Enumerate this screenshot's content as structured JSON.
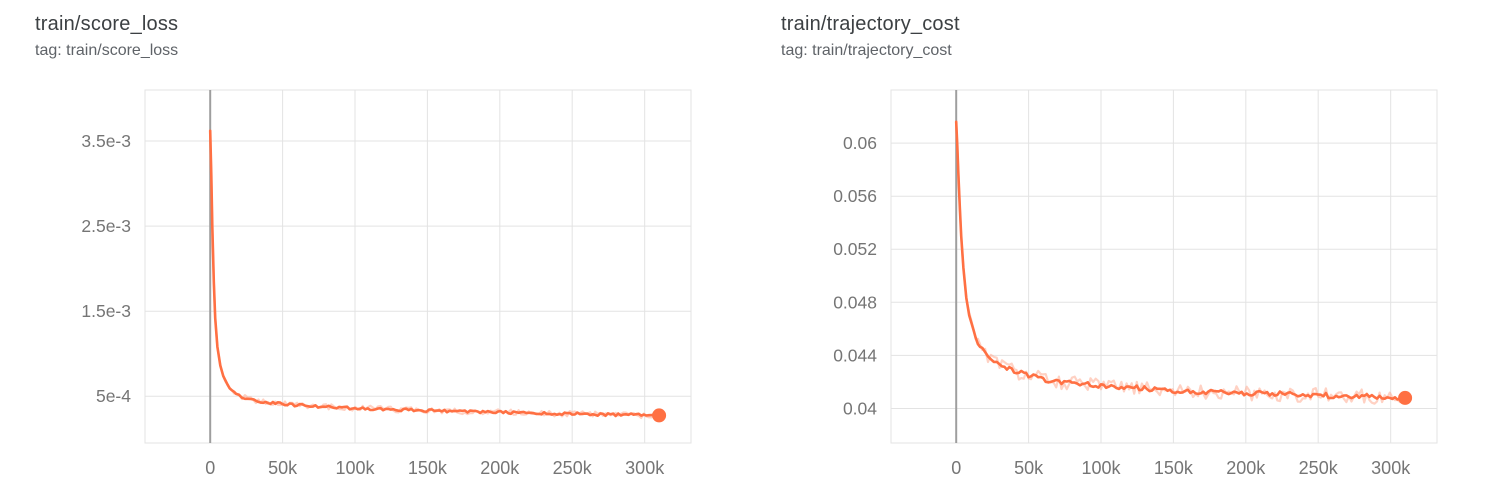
{
  "colors": {
    "accent": "#ff7043",
    "accent_raw": "#ffab91",
    "grid": "#e3e3e3",
    "zero_line": "#9e9e9e",
    "title_text": "#3c4043",
    "tag_text": "#5f6368",
    "tick_text": "#757575",
    "background": "#ffffff"
  },
  "chart_data": [
    {
      "type": "line",
      "title": "train/score_loss",
      "tag": "tag: train/score_loss",
      "xlabel": "",
      "ylabel": "",
      "xlim": [
        -45000,
        332000
      ],
      "ylim": [
        -5e-05,
        0.0041
      ],
      "grid": true,
      "legend": false,
      "xticks": [
        {
          "v": 0,
          "label": "0"
        },
        {
          "v": 50000,
          "label": "50k"
        },
        {
          "v": 100000,
          "label": "100k"
        },
        {
          "v": 150000,
          "label": "150k"
        },
        {
          "v": 200000,
          "label": "200k"
        },
        {
          "v": 250000,
          "label": "250k"
        },
        {
          "v": 300000,
          "label": "300k"
        }
      ],
      "yticks": [
        {
          "v": 0.0005,
          "label": "5e-4"
        },
        {
          "v": 0.0015,
          "label": "1.5e-3"
        },
        {
          "v": 0.0025,
          "label": "2.5e-3"
        },
        {
          "v": 0.0035,
          "label": "3.5e-3"
        }
      ],
      "noise": {
        "raw": 3.5e-05,
        "smooth": 1.6e-05,
        "onset": 4000,
        "full": 18000
      },
      "series": [
        {
          "name": "train",
          "color": "#ff7043",
          "final_step": 310000,
          "final_value": 0.000275,
          "points": [
            [
              0,
              0.00362
            ],
            [
              800,
              0.0031
            ],
            [
              1500,
              0.0025
            ],
            [
              2500,
              0.00185
            ],
            [
              3500,
              0.00142
            ],
            [
              5000,
              0.00108
            ],
            [
              7000,
              0.00086
            ],
            [
              9000,
              0.00074
            ],
            [
              12000,
              0.00063
            ],
            [
              15000,
              0.00057
            ],
            [
              18000,
              0.00053
            ],
            [
              22000,
              0.000495
            ],
            [
              26000,
              0.00047
            ],
            [
              30000,
              0.000452
            ],
            [
              40000,
              0.000425
            ],
            [
              50000,
              0.000408
            ],
            [
              60000,
              0.000395
            ],
            [
              80000,
              0.000375
            ],
            [
              100000,
              0.00036
            ],
            [
              130000,
              0.000342
            ],
            [
              160000,
              0.000328
            ],
            [
              190000,
              0.000315
            ],
            [
              220000,
              0.000303
            ],
            [
              250000,
              0.000292
            ],
            [
              280000,
              0.000283
            ],
            [
              310000,
              0.000275
            ]
          ]
        }
      ]
    },
    {
      "type": "line",
      "title": "train/trajectory_cost",
      "tag": "tag: train/trajectory_cost",
      "xlabel": "",
      "ylabel": "",
      "xlim": [
        -45000,
        332000
      ],
      "ylim": [
        0.0374,
        0.064
      ],
      "grid": true,
      "legend": false,
      "xticks": [
        {
          "v": 0,
          "label": "0"
        },
        {
          "v": 50000,
          "label": "50k"
        },
        {
          "v": 100000,
          "label": "100k"
        },
        {
          "v": 150000,
          "label": "150k"
        },
        {
          "v": 200000,
          "label": "200k"
        },
        {
          "v": 250000,
          "label": "250k"
        },
        {
          "v": 300000,
          "label": "300k"
        }
      ],
      "yticks": [
        {
          "v": 0.04,
          "label": "0.04"
        },
        {
          "v": 0.044,
          "label": "0.044"
        },
        {
          "v": 0.048,
          "label": "0.048"
        },
        {
          "v": 0.052,
          "label": "0.052"
        },
        {
          "v": 0.056,
          "label": "0.056"
        },
        {
          "v": 0.06,
          "label": "0.06"
        }
      ],
      "noise": {
        "raw": 0.00055,
        "smooth": 0.00019,
        "onset": 3000,
        "full": 15000
      },
      "series": [
        {
          "name": "train",
          "color": "#ff7043",
          "final_step": 310000,
          "final_value": 0.0408,
          "points": [
            [
              0,
              0.0616
            ],
            [
              800,
              0.0598
            ],
            [
              1500,
              0.0578
            ],
            [
              2500,
              0.0552
            ],
            [
              3500,
              0.053
            ],
            [
              5000,
              0.0506
            ],
            [
              7000,
              0.0484
            ],
            [
              9000,
              0.047
            ],
            [
              12000,
              0.0458
            ],
            [
              15000,
              0.045
            ],
            [
              18000,
              0.0445
            ],
            [
              22000,
              0.044
            ],
            [
              26000,
              0.0436
            ],
            [
              30000,
              0.0433
            ],
            [
              40000,
              0.0428
            ],
            [
              50000,
              0.0425
            ],
            [
              60000,
              0.0422
            ],
            [
              80000,
              0.0419
            ],
            [
              100000,
              0.0417
            ],
            [
              130000,
              0.0415
            ],
            [
              160000,
              0.0413
            ],
            [
              190000,
              0.0412
            ],
            [
              220000,
              0.0411
            ],
            [
              250000,
              0.041
            ],
            [
              280000,
              0.0409
            ],
            [
              310000,
              0.0408
            ]
          ]
        }
      ]
    }
  ]
}
